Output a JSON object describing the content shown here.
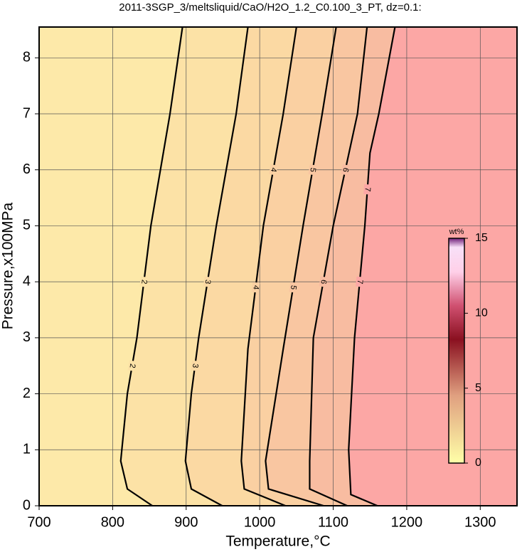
{
  "chart_data": {
    "type": "contour",
    "title": "2011-3SGP_3/meltsliquid/CaO/H2O_1.2_C0.100_3_PT, dz=0.1:",
    "x_label": "Temperature,°C",
    "y_label": "Pressure,x100MPa",
    "xlim": [
      700,
      1350
    ],
    "ylim": [
      0,
      8.55
    ],
    "xticks": [
      700,
      800,
      900,
      1000,
      1100,
      1200,
      1300
    ],
    "yticks": [
      0,
      1,
      2,
      3,
      4,
      5,
      6,
      7,
      8
    ],
    "grid": true,
    "fill_colors": [
      "#fde9a9",
      "#fce2a6",
      "#fbd9a3",
      "#fad0a2",
      "#f9c6a1",
      "#f8bca1",
      "#fca7a5"
    ],
    "contours": [
      {
        "level": 2,
        "x": [
          854,
          820,
          811,
          820,
          833,
          852,
          878,
          895
        ],
        "y": [
          0,
          0.3,
          0.8,
          2,
          3,
          5,
          7,
          8.55
        ]
      },
      {
        "level": 3,
        "x": [
          949,
          907,
          899,
          907,
          917,
          941,
          968,
          984
        ],
        "y": [
          0,
          0.3,
          0.8,
          2,
          3,
          5,
          7,
          8.55
        ]
      },
      {
        "level": 4,
        "x": [
          1035,
          979,
          975,
          984,
          1005,
          1032,
          1050
        ],
        "y": [
          0,
          0.3,
          0.8,
          2.8,
          5,
          7,
          8.55
        ]
      },
      {
        "level": 5,
        "x": [
          1087,
          1012,
          1008,
          1032,
          1059,
          1085,
          1104
        ],
        "y": [
          0,
          0.3,
          0.8,
          2.8,
          5,
          7,
          8.55
        ]
      },
      {
        "level": 6,
        "x": [
          1119,
          1068,
          1068,
          1073,
          1100,
          1133,
          1146
        ],
        "y": [
          0,
          0.3,
          0.8,
          3,
          5,
          7,
          8.55
        ]
      },
      {
        "level": 7,
        "x": [
          1160,
          1124,
          1121,
          1129,
          1143,
          1150,
          1162,
          1184
        ],
        "y": [
          0,
          0.2,
          1,
          3,
          5,
          6.3,
          7,
          8.55
        ]
      }
    ],
    "colorbar": {
      "label": "wt%",
      "lim": [
        0,
        15
      ],
      "ticks": [
        0,
        5,
        10,
        15
      ]
    }
  }
}
